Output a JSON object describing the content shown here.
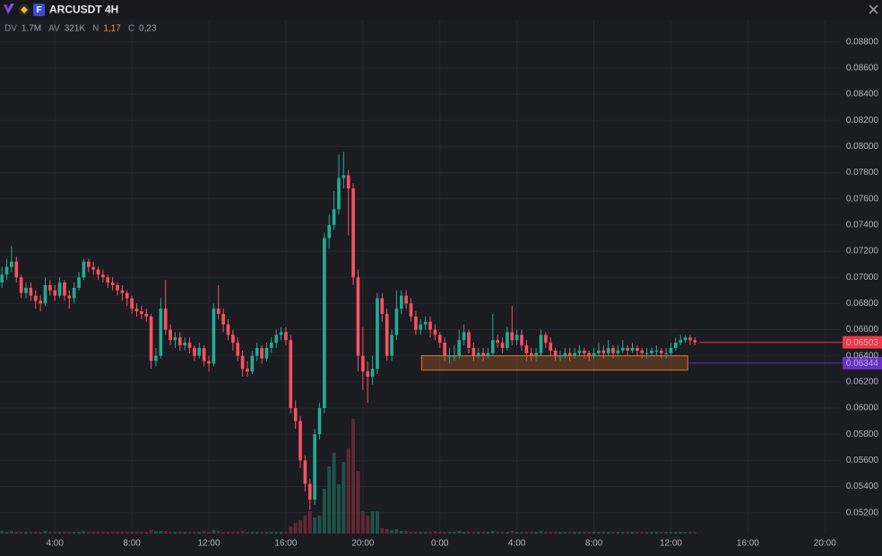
{
  "chart_data": {
    "type": "candlestick",
    "title": "ARCUSDT 4H",
    "badge": "F",
    "stats": [
      {
        "label": "DV",
        "value": "1.7M"
      },
      {
        "label": "AV",
        "value": "321K"
      },
      {
        "label": "N",
        "value": "1,17"
      },
      {
        "label": "C",
        "value": "0,23"
      }
    ],
    "up_color": "#22ab94",
    "down_color": "#f7525f",
    "grid": true,
    "ylim": [
      0.0504,
      0.0897
    ],
    "yticks": [
      {
        "value": 0.052,
        "label": "0.05200"
      },
      {
        "value": 0.054,
        "label": "0.05400"
      },
      {
        "value": 0.056,
        "label": "0.05600"
      },
      {
        "value": 0.058,
        "label": "0.05800"
      },
      {
        "value": 0.06,
        "label": "0.06000"
      },
      {
        "value": 0.062,
        "label": "0.06200"
      },
      {
        "value": 0.064,
        "label": "0.06400"
      },
      {
        "value": 0.066,
        "label": "0.06600"
      },
      {
        "value": 0.068,
        "label": "0.06800"
      },
      {
        "value": 0.07,
        "label": "0.07000"
      },
      {
        "value": 0.072,
        "label": "0.07200"
      },
      {
        "value": 0.074,
        "label": "0.07400"
      },
      {
        "value": 0.076,
        "label": "0.07600"
      },
      {
        "value": 0.078,
        "label": "0.07800"
      },
      {
        "value": 0.08,
        "label": "0.08000"
      },
      {
        "value": 0.082,
        "label": "0.08200"
      },
      {
        "value": 0.084,
        "label": "0.08400"
      },
      {
        "value": 0.086,
        "label": "0.08600"
      },
      {
        "value": 0.088,
        "label": "0.08800"
      }
    ],
    "xlim": [
      -0.4,
      174.3
    ],
    "xticks": [
      {
        "value": 11,
        "label": "4:00"
      },
      {
        "value": 27,
        "label": "8:00"
      },
      {
        "value": 43,
        "label": "12:00"
      },
      {
        "value": 59,
        "label": "16:00"
      },
      {
        "value": 75,
        "label": "20:00"
      },
      {
        "value": 91,
        "label": "0:00"
      },
      {
        "value": 107,
        "label": "4:00"
      },
      {
        "value": 123,
        "label": "8:00"
      },
      {
        "value": 139,
        "label": "12:00"
      },
      {
        "value": 155,
        "label": "16:00"
      },
      {
        "value": 171,
        "label": "20:00"
      }
    ],
    "candles": [
      [
        0.0696,
        0.0708,
        0.0692,
        0.0702
      ],
      [
        0.0702,
        0.0714,
        0.0698,
        0.0708
      ],
      [
        0.0708,
        0.0724,
        0.0704,
        0.0712
      ],
      [
        0.0712,
        0.0716,
        0.0696,
        0.07
      ],
      [
        0.07,
        0.0702,
        0.0684,
        0.0688
      ],
      [
        0.0688,
        0.0696,
        0.0684,
        0.0692
      ],
      [
        0.0692,
        0.0696,
        0.0682,
        0.0686
      ],
      [
        0.0686,
        0.069,
        0.0676,
        0.0682
      ],
      [
        0.0682,
        0.0686,
        0.0674,
        0.068
      ],
      [
        0.068,
        0.07,
        0.0678,
        0.0694
      ],
      [
        0.0694,
        0.0698,
        0.0686,
        0.069
      ],
      [
        0.069,
        0.0694,
        0.0682,
        0.0686
      ],
      [
        0.0686,
        0.07,
        0.0684,
        0.0696
      ],
      [
        0.0696,
        0.0698,
        0.0682,
        0.0686
      ],
      [
        0.0686,
        0.069,
        0.0676,
        0.0684
      ],
      [
        0.0684,
        0.0696,
        0.068,
        0.0692
      ],
      [
        0.0692,
        0.0704,
        0.069,
        0.07
      ],
      [
        0.07,
        0.0714,
        0.0698,
        0.0712
      ],
      [
        0.0712,
        0.0714,
        0.0704,
        0.0708
      ],
      [
        0.0708,
        0.0712,
        0.0702,
        0.0706
      ],
      [
        0.0706,
        0.0708,
        0.0698,
        0.0702
      ],
      [
        0.0702,
        0.0706,
        0.0696,
        0.07
      ],
      [
        0.07,
        0.0702,
        0.0692,
        0.0696
      ],
      [
        0.0696,
        0.07,
        0.069,
        0.0694
      ],
      [
        0.0694,
        0.0696,
        0.0686,
        0.069
      ],
      [
        0.069,
        0.0694,
        0.0682,
        0.0688
      ],
      [
        0.0688,
        0.069,
        0.0678,
        0.0684
      ],
      [
        0.0684,
        0.0686,
        0.0672,
        0.0676
      ],
      [
        0.0676,
        0.068,
        0.067,
        0.0674
      ],
      [
        0.0674,
        0.0678,
        0.0668,
        0.0672
      ],
      [
        0.0672,
        0.0676,
        0.0666,
        0.067
      ],
      [
        0.067,
        0.0672,
        0.063,
        0.0636
      ],
      [
        0.0636,
        0.0646,
        0.0632,
        0.064
      ],
      [
        0.064,
        0.0684,
        0.0638,
        0.0676
      ],
      [
        0.0676,
        0.0698,
        0.0656,
        0.066
      ],
      [
        0.066,
        0.0664,
        0.0648,
        0.0652
      ],
      [
        0.0652,
        0.0658,
        0.0646,
        0.0654
      ],
      [
        0.0654,
        0.0658,
        0.0644,
        0.0648
      ],
      [
        0.0648,
        0.0654,
        0.0644,
        0.065
      ],
      [
        0.065,
        0.0654,
        0.0642,
        0.0646
      ],
      [
        0.0646,
        0.0648,
        0.0636,
        0.064
      ],
      [
        0.064,
        0.065,
        0.0638,
        0.0646
      ],
      [
        0.0646,
        0.0648,
        0.0632,
        0.0636
      ],
      [
        0.0636,
        0.064,
        0.0628,
        0.0634
      ],
      [
        0.0634,
        0.068,
        0.0632,
        0.0676
      ],
      [
        0.0676,
        0.0694,
        0.0668,
        0.0672
      ],
      [
        0.0672,
        0.0676,
        0.0658,
        0.0664
      ],
      [
        0.0664,
        0.0668,
        0.0652,
        0.0656
      ],
      [
        0.0656,
        0.066,
        0.0644,
        0.065
      ],
      [
        0.065,
        0.0654,
        0.0636,
        0.064
      ],
      [
        0.064,
        0.0644,
        0.0624,
        0.063
      ],
      [
        0.063,
        0.0636,
        0.0624,
        0.0628
      ],
      [
        0.0628,
        0.0644,
        0.0626,
        0.064
      ],
      [
        0.064,
        0.065,
        0.0636,
        0.0646
      ],
      [
        0.0646,
        0.0648,
        0.0634,
        0.0638
      ],
      [
        0.0638,
        0.065,
        0.0636,
        0.0646
      ],
      [
        0.0646,
        0.0654,
        0.0642,
        0.065
      ],
      [
        0.065,
        0.066,
        0.0646,
        0.0656
      ],
      [
        0.0656,
        0.0662,
        0.0652,
        0.0658
      ],
      [
        0.0658,
        0.0662,
        0.0648,
        0.0652
      ],
      [
        0.0652,
        0.0656,
        0.0596,
        0.06
      ],
      [
        0.06,
        0.0606,
        0.0584,
        0.059
      ],
      [
        0.059,
        0.0594,
        0.0554,
        0.056
      ],
      [
        0.056,
        0.0564,
        0.0536,
        0.0542
      ],
      [
        0.0542,
        0.0546,
        0.0522,
        0.053
      ],
      [
        0.053,
        0.0584,
        0.0526,
        0.058
      ],
      [
        0.058,
        0.0604,
        0.0576,
        0.06
      ],
      [
        0.06,
        0.0734,
        0.0596,
        0.073
      ],
      [
        0.073,
        0.0748,
        0.0722,
        0.074
      ],
      [
        0.074,
        0.0766,
        0.0736,
        0.0752
      ],
      [
        0.0752,
        0.0794,
        0.0748,
        0.0776
      ],
      [
        0.0776,
        0.0796,
        0.0768,
        0.0778
      ],
      [
        0.0778,
        0.0782,
        0.0732,
        0.0768
      ],
      [
        0.0768,
        0.0772,
        0.0694,
        0.07
      ],
      [
        0.07,
        0.0706,
        0.0628,
        0.064
      ],
      [
        0.064,
        0.0662,
        0.0614,
        0.0628
      ],
      [
        0.0628,
        0.0636,
        0.0604,
        0.0624
      ],
      [
        0.0624,
        0.064,
        0.0618,
        0.063
      ],
      [
        0.063,
        0.0688,
        0.0626,
        0.0684
      ],
      [
        0.0684,
        0.0688,
        0.0666,
        0.0672
      ],
      [
        0.0672,
        0.0676,
        0.0636,
        0.064
      ],
      [
        0.064,
        0.066,
        0.0636,
        0.0656
      ],
      [
        0.0656,
        0.069,
        0.0652,
        0.0676
      ],
      [
        0.0676,
        0.069,
        0.0672,
        0.0686
      ],
      [
        0.0686,
        0.069,
        0.0676,
        0.068
      ],
      [
        0.068,
        0.0684,
        0.0666,
        0.067
      ],
      [
        0.067,
        0.0674,
        0.0656,
        0.066
      ],
      [
        0.066,
        0.0668,
        0.0656,
        0.0664
      ],
      [
        0.0664,
        0.067,
        0.066,
        0.0666
      ],
      [
        0.0666,
        0.067,
        0.0654,
        0.066
      ],
      [
        0.066,
        0.0664,
        0.0652,
        0.0656
      ],
      [
        0.0656,
        0.0658,
        0.0646,
        0.065
      ],
      [
        0.065,
        0.0654,
        0.0636,
        0.064
      ],
      [
        0.064,
        0.0646,
        0.0634,
        0.064
      ],
      [
        0.064,
        0.0648,
        0.0636,
        0.064
      ],
      [
        0.064,
        0.066,
        0.0638,
        0.0652
      ],
      [
        0.0652,
        0.0664,
        0.0648,
        0.0658
      ],
      [
        0.0658,
        0.066,
        0.0642,
        0.0646
      ],
      [
        0.0646,
        0.065,
        0.0636,
        0.064
      ],
      [
        0.064,
        0.0646,
        0.0638,
        0.0642
      ],
      [
        0.0642,
        0.0646,
        0.0636,
        0.064
      ],
      [
        0.064,
        0.0646,
        0.0638,
        0.0642
      ],
      [
        0.0642,
        0.0672,
        0.064,
        0.0652
      ],
      [
        0.0652,
        0.0656,
        0.0646,
        0.065
      ],
      [
        0.065,
        0.0654,
        0.0642,
        0.0646
      ],
      [
        0.0646,
        0.0662,
        0.0644,
        0.0658
      ],
      [
        0.0658,
        0.0678,
        0.0648,
        0.0652
      ],
      [
        0.0652,
        0.066,
        0.0648,
        0.0656
      ],
      [
        0.0656,
        0.066,
        0.0644,
        0.0648
      ],
      [
        0.0648,
        0.0652,
        0.0636,
        0.0642
      ],
      [
        0.0642,
        0.0646,
        0.0636,
        0.064
      ],
      [
        0.064,
        0.0646,
        0.0636,
        0.0642
      ],
      [
        0.0642,
        0.066,
        0.064,
        0.0656
      ],
      [
        0.0656,
        0.0658,
        0.0646,
        0.065
      ],
      [
        0.065,
        0.0654,
        0.064,
        0.0644
      ],
      [
        0.0644,
        0.0646,
        0.0636,
        0.064
      ],
      [
        0.064,
        0.0644,
        0.0636,
        0.064
      ],
      [
        0.064,
        0.0646,
        0.0638,
        0.0642
      ],
      [
        0.0642,
        0.0646,
        0.0636,
        0.064
      ],
      [
        0.064,
        0.0646,
        0.0638,
        0.0642
      ],
      [
        0.0642,
        0.0648,
        0.064,
        0.0644
      ],
      [
        0.0644,
        0.0646,
        0.0638,
        0.0642
      ],
      [
        0.0642,
        0.0644,
        0.0636,
        0.064
      ],
      [
        0.064,
        0.0646,
        0.0638,
        0.0642
      ],
      [
        0.0642,
        0.065,
        0.064,
        0.0644
      ],
      [
        0.0644,
        0.0648,
        0.0638,
        0.0642
      ],
      [
        0.0642,
        0.0652,
        0.064,
        0.0646
      ],
      [
        0.0646,
        0.0648,
        0.0638,
        0.0642
      ],
      [
        0.0642,
        0.0648,
        0.064,
        0.0644
      ],
      [
        0.0644,
        0.0652,
        0.0642,
        0.0646
      ],
      [
        0.0646,
        0.0648,
        0.064,
        0.0644
      ],
      [
        0.0644,
        0.065,
        0.0642,
        0.0646
      ],
      [
        0.0646,
        0.0648,
        0.064,
        0.0644
      ],
      [
        0.0644,
        0.0646,
        0.0638,
        0.0642
      ],
      [
        0.0642,
        0.0646,
        0.0638,
        0.0642
      ],
      [
        0.0642,
        0.0646,
        0.064,
        0.0644
      ],
      [
        0.0644,
        0.0648,
        0.064,
        0.0644
      ],
      [
        0.0644,
        0.0646,
        0.0638,
        0.0642
      ],
      [
        0.0642,
        0.0646,
        0.0638,
        0.0642
      ],
      [
        0.0642,
        0.065,
        0.064,
        0.0646
      ],
      [
        0.0646,
        0.0654,
        0.0644,
        0.065
      ],
      [
        0.065,
        0.0656,
        0.0648,
        0.0652
      ],
      [
        0.0652,
        0.0656,
        0.065,
        0.0654
      ],
      [
        0.0654,
        0.0656,
        0.0648,
        0.0652
      ],
      [
        0.0652,
        0.0654,
        0.0648,
        0.06503
      ]
    ],
    "volume": [
      3,
      2,
      3,
      2,
      2,
      2,
      2,
      2,
      2,
      3,
      2,
      2,
      2,
      2,
      2,
      2,
      2,
      3,
      2,
      2,
      2,
      2,
      2,
      2,
      2,
      2,
      2,
      2,
      2,
      2,
      2,
      4,
      3,
      3,
      3,
      2,
      2,
      2,
      2,
      2,
      2,
      2,
      3,
      2,
      4,
      3,
      2,
      2,
      2,
      2,
      3,
      2,
      2,
      2,
      2,
      2,
      2,
      2,
      2,
      2,
      8,
      12,
      15,
      20,
      25,
      18,
      20,
      50,
      75,
      90,
      55,
      80,
      95,
      128,
      70,
      25,
      20,
      25,
      25,
      6,
      5,
      4,
      5,
      3,
      3,
      2,
      2,
      2,
      2,
      2,
      3,
      2,
      2,
      2,
      2,
      3,
      2,
      2,
      2,
      2,
      2,
      2,
      3,
      2,
      2,
      2,
      3,
      2,
      2,
      2,
      2,
      2,
      3,
      2,
      2,
      2,
      2,
      2,
      2,
      2,
      2,
      2,
      2,
      2,
      2,
      2,
      2,
      2,
      2,
      2,
      2,
      2,
      2,
      2,
      2,
      2,
      2,
      2,
      2,
      2,
      2,
      2,
      2,
      2,
      2
    ],
    "vlim": [
      0,
      150
    ],
    "zone": {
      "x": [
        87.2,
        142.5
      ],
      "y": [
        0.0629,
        0.064
      ],
      "color": "#e07b24"
    },
    "price_lines": [
      {
        "value": 0.06503,
        "label": "0.06503",
        "color": "#f23645"
      },
      {
        "value": 0.06344,
        "label": "0.06344",
        "color": "#6a2fc9"
      }
    ]
  }
}
